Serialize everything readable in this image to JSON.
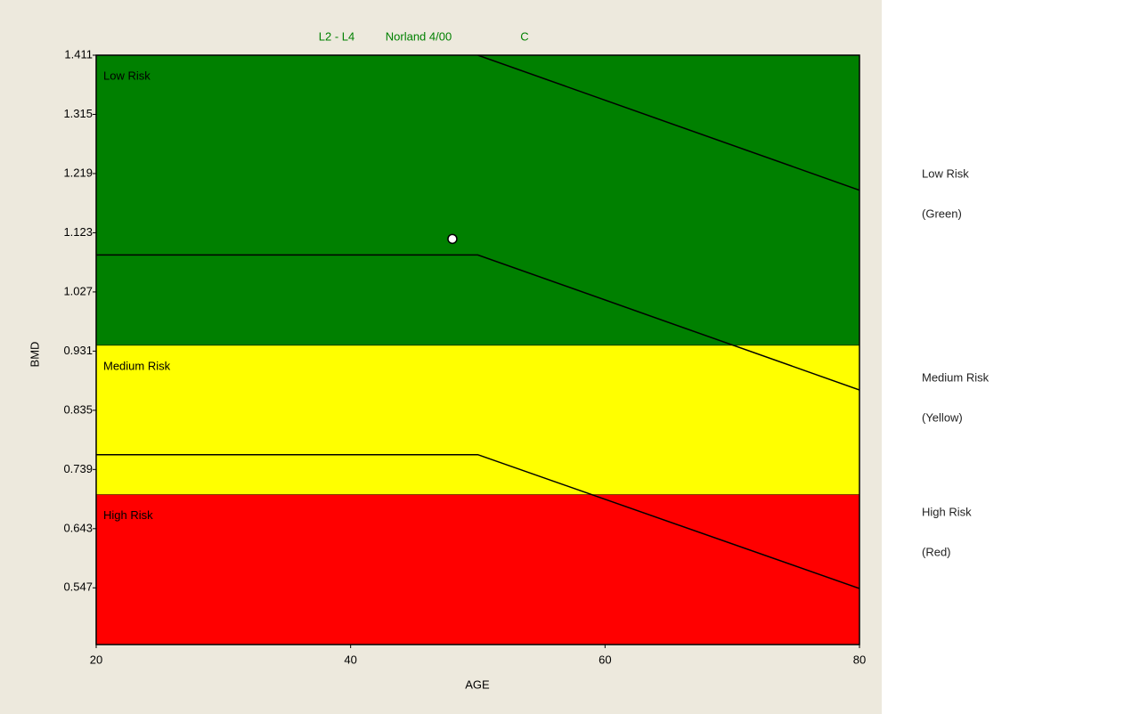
{
  "chart_data": {
    "type": "zones",
    "title_parts": [
      "L2 - L4",
      "Norland 4/00",
      "C"
    ],
    "title_color": "#008000",
    "xlabel": "AGE",
    "ylabel": "BMD",
    "xlim": [
      20,
      80
    ],
    "xticks": [
      20,
      40,
      60,
      80
    ],
    "ylim": [
      0.455,
      1.411
    ],
    "yticks": [
      1.411,
      1.315,
      1.219,
      1.123,
      1.027,
      0.931,
      0.835,
      0.739,
      0.643,
      0.547
    ],
    "zones": [
      {
        "name": "Low Risk",
        "color": "#008000",
        "range": [
          0.94,
          1.411
        ]
      },
      {
        "name": "Medium Risk",
        "color": "#ffff00",
        "range": [
          0.698,
          0.94
        ]
      },
      {
        "name": "High Risk",
        "color": "#ff0000",
        "range": [
          0.455,
          0.698
        ]
      }
    ],
    "series": [
      {
        "color": "#000000",
        "x": [
          50,
          80
        ],
        "values": [
          1.411,
          1.192
        ]
      },
      {
        "color": "#000000",
        "x": [
          20,
          50,
          80
        ],
        "values": [
          1.087,
          1.087,
          0.868
        ]
      },
      {
        "color": "#000000",
        "x": [
          20,
          50,
          80
        ],
        "values": [
          0.763,
          0.763,
          0.546
        ]
      }
    ],
    "points": {
      "color": "#ffffff",
      "x": [
        48
      ],
      "values": [
        1.113
      ]
    },
    "side_labels": [
      [
        "Low Risk",
        "(Green)"
      ],
      [
        "Medium Risk",
        "(Yellow)"
      ],
      [
        "High Risk",
        "(Red)"
      ]
    ]
  }
}
